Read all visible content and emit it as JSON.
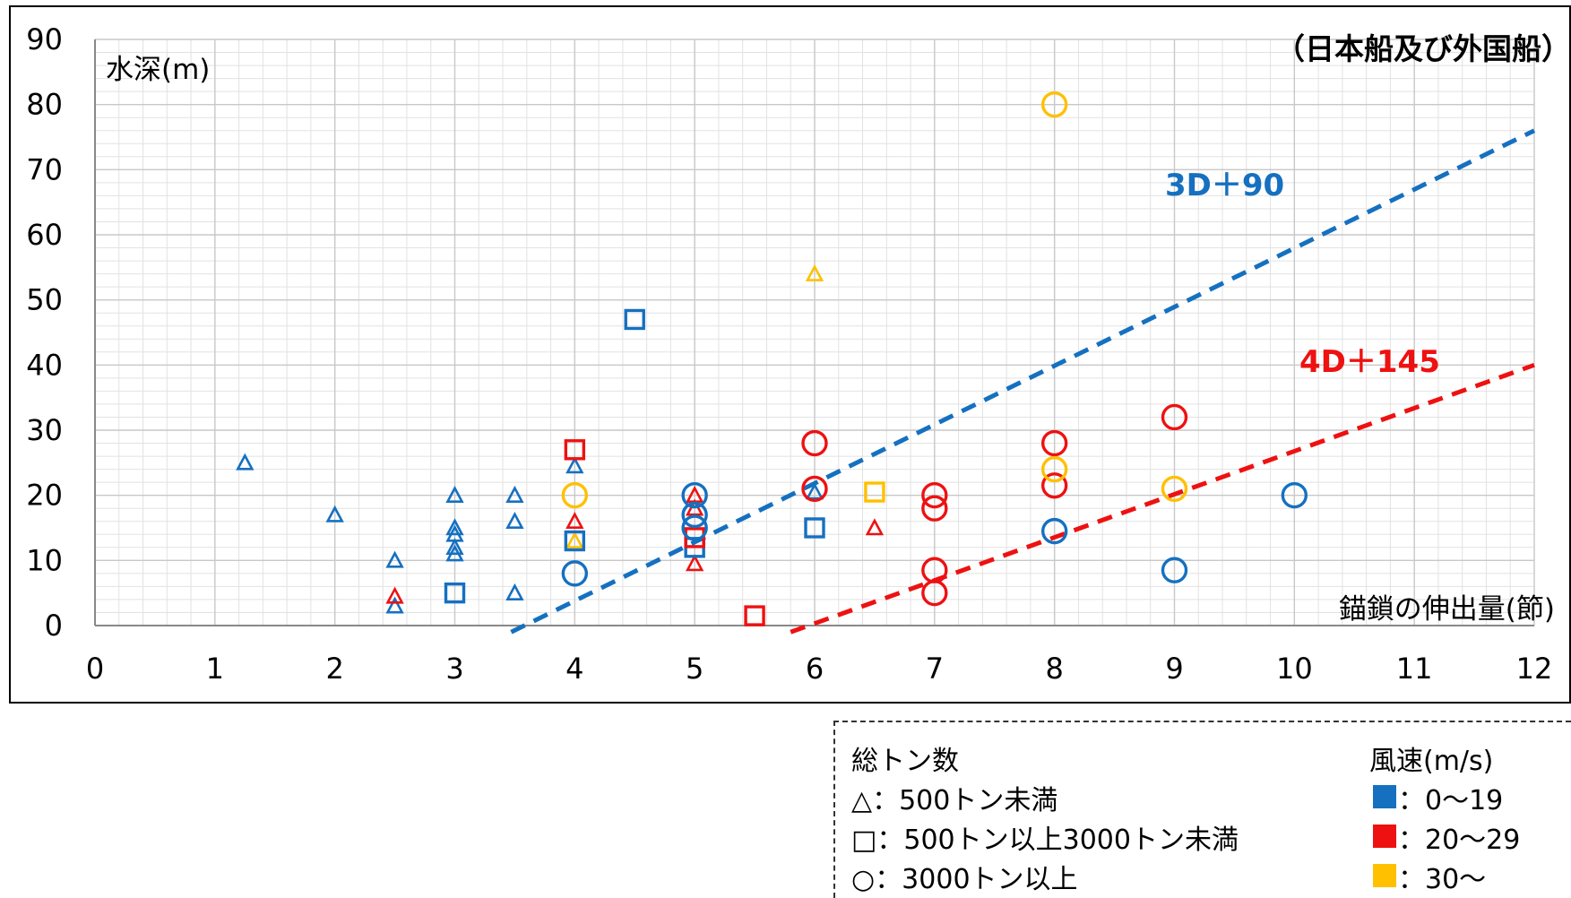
{
  "chart_data": {
    "type": "scatter",
    "title": "（日本船及び外国船）",
    "ylabel": "水深(m)",
    "xlabel": "錨鎖の伸出量(節)",
    "xlim": [
      0,
      12
    ],
    "ylim": [
      0,
      90
    ],
    "x_ticks": [
      "0",
      "1",
      "2",
      "3",
      "4",
      "5",
      "6",
      "7",
      "8",
      "9",
      "10",
      "11",
      "12"
    ],
    "y_ticks": [
      "0",
      "10",
      "20",
      "30",
      "40",
      "50",
      "60",
      "70",
      "80",
      "90"
    ],
    "grid": true,
    "colors": {
      "0-19": "#1570c0",
      "20-29": "#ee1111",
      "30+": "#ffc000"
    },
    "series": [
      {
        "shape": "triangle",
        "color": "#1570c0",
        "points": [
          [
            1.25,
            25
          ],
          [
            2,
            17
          ],
          [
            2.5,
            10
          ],
          [
            2.5,
            3
          ],
          [
            3,
            20
          ],
          [
            3,
            15
          ],
          [
            3,
            14
          ],
          [
            3,
            12
          ],
          [
            3,
            11
          ],
          [
            3.5,
            20
          ],
          [
            3.5,
            16
          ],
          [
            3.5,
            5
          ],
          [
            4,
            24.5
          ],
          [
            6,
            20.5
          ]
        ]
      },
      {
        "shape": "triangle",
        "color": "#ee1111",
        "points": [
          [
            2.5,
            4.5
          ],
          [
            4,
            16
          ],
          [
            5,
            20
          ],
          [
            5,
            18
          ],
          [
            5,
            9.5
          ],
          [
            6.5,
            15
          ]
        ]
      },
      {
        "shape": "triangle",
        "color": "#ffc000",
        "points": [
          [
            4,
            13
          ],
          [
            6,
            54
          ]
        ]
      },
      {
        "shape": "square",
        "color": "#1570c0",
        "points": [
          [
            3,
            5
          ],
          [
            4,
            13
          ],
          [
            4.5,
            47
          ],
          [
            5,
            12
          ],
          [
            6,
            15
          ]
        ]
      },
      {
        "shape": "square",
        "color": "#ee1111",
        "points": [
          [
            4,
            27
          ],
          [
            5,
            13.5
          ],
          [
            5.5,
            1.5
          ]
        ]
      },
      {
        "shape": "square",
        "color": "#ffc000",
        "points": [
          [
            6.5,
            20.5
          ]
        ]
      },
      {
        "shape": "circle",
        "color": "#1570c0",
        "points": [
          [
            4,
            8
          ],
          [
            5,
            20
          ],
          [
            5,
            17
          ],
          [
            5,
            15
          ],
          [
            8,
            14.5
          ],
          [
            9,
            8.5
          ],
          [
            10,
            20
          ]
        ]
      },
      {
        "shape": "circle",
        "color": "#ee1111",
        "points": [
          [
            6,
            28
          ],
          [
            6,
            21
          ],
          [
            7,
            20
          ],
          [
            7,
            18
          ],
          [
            7,
            8.5
          ],
          [
            7,
            5
          ],
          [
            8,
            28
          ],
          [
            8,
            21.5
          ],
          [
            9,
            32
          ]
        ]
      },
      {
        "shape": "circle",
        "color": "#ffc000",
        "points": [
          [
            4,
            20
          ],
          [
            8,
            80
          ],
          [
            8,
            24
          ],
          [
            9,
            21
          ]
        ]
      }
    ],
    "lines": [
      {
        "label": "3D＋90",
        "color": "#1570c0",
        "from": [
          3.47,
          -1
        ],
        "to": [
          12,
          76
        ]
      },
      {
        "label": "4D＋145",
        "color": "#ee1111",
        "from": [
          5.8,
          -1
        ],
        "to": [
          12,
          40
        ]
      }
    ]
  },
  "legend": {
    "size_title": "総トン数",
    "size_items": [
      {
        "symbol": "△",
        "text": "：500トン未満"
      },
      {
        "symbol": "□",
        "text": "：500トン以上3000トン未満"
      },
      {
        "symbol": "○",
        "text": "：3000トン以上"
      }
    ],
    "wind_title": "風速(m/s)",
    "wind_items": [
      {
        "color": "#1570c0",
        "text": "：0～19"
      },
      {
        "color": "#ee1111",
        "text": "：20～29"
      },
      {
        "color": "#ffc000",
        "text": "：30～"
      }
    ]
  }
}
